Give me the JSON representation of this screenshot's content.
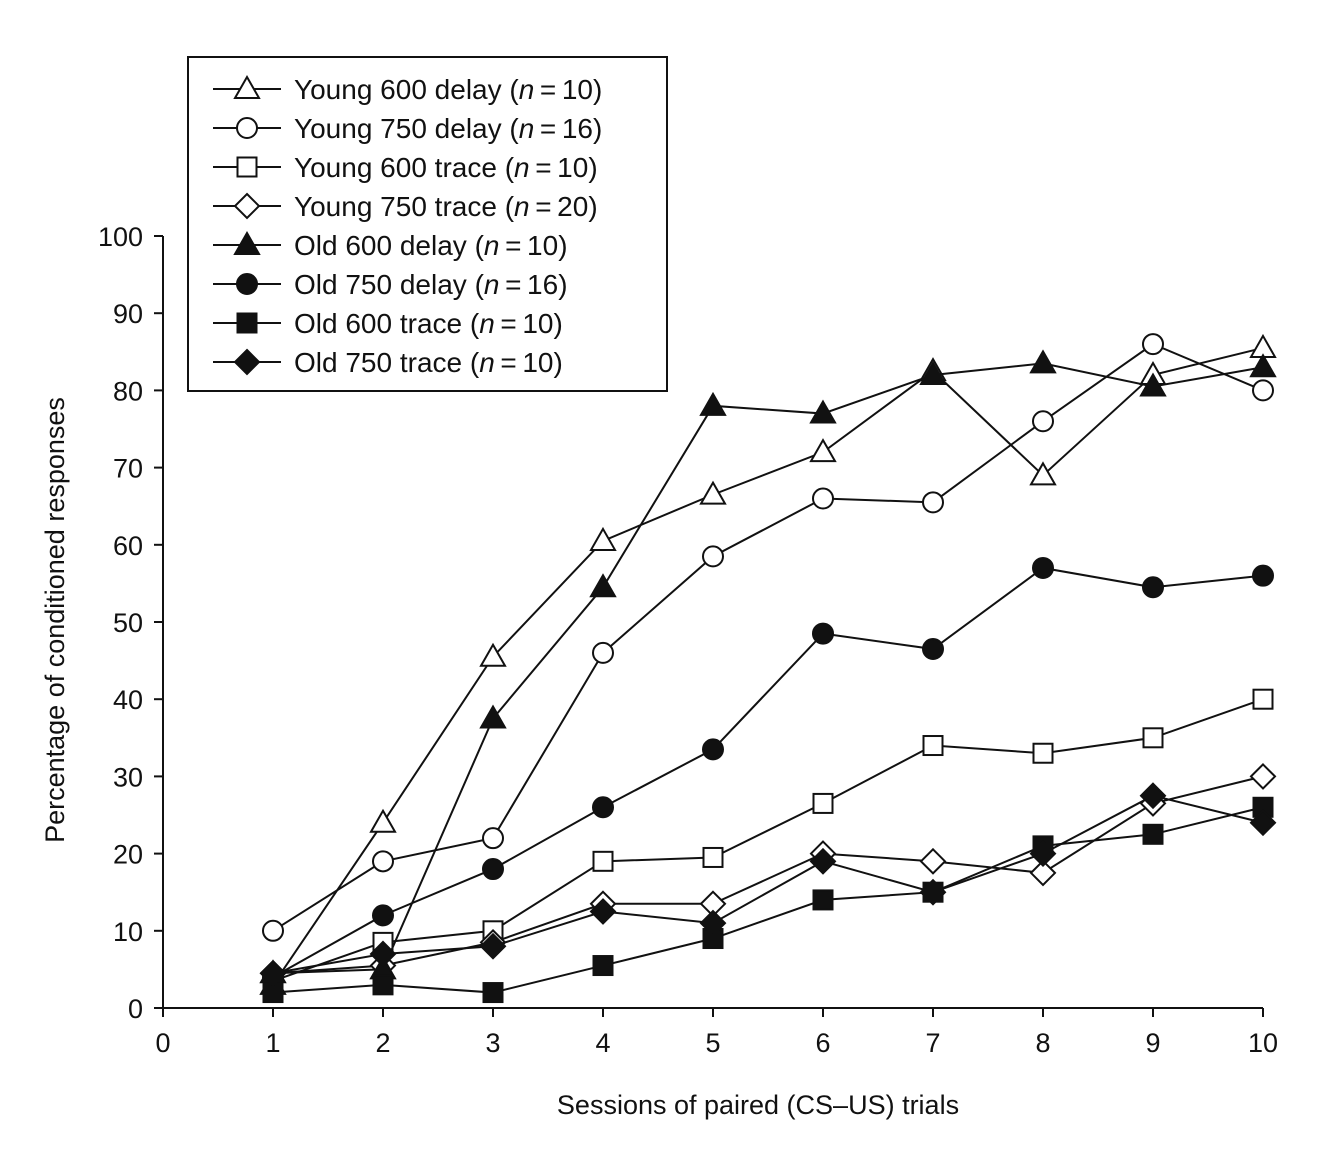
{
  "chart_data": {
    "type": "line",
    "title": "",
    "xlabel": "Sessions of paired (CS–US) trials",
    "ylabel": "Percentage of conditioned responses",
    "xlim": [
      0,
      10
    ],
    "ylim": [
      0,
      100
    ],
    "xticks": [
      0,
      1,
      2,
      3,
      4,
      5,
      6,
      7,
      8,
      9,
      10
    ],
    "yticks": [
      0,
      10,
      20,
      30,
      40,
      50,
      60,
      70,
      80,
      90,
      100
    ],
    "grid": false,
    "legend_position": "top-left",
    "x": [
      1,
      2,
      3,
      4,
      5,
      6,
      7,
      8,
      9,
      10
    ],
    "series": [
      {
        "name": "Young 600 delay",
        "n": "10",
        "marker": "triangle",
        "filled": false,
        "values": [
          3,
          24,
          45.5,
          60.5,
          66.5,
          72,
          82.5,
          69,
          82,
          85.5
        ]
      },
      {
        "name": "Young 750 delay",
        "n": "16",
        "marker": "circle",
        "filled": false,
        "values": [
          10,
          19,
          22,
          46,
          58.5,
          66,
          65.5,
          76,
          86,
          80
        ]
      },
      {
        "name": "Young 600 trace",
        "n": "10",
        "marker": "square",
        "filled": false,
        "values": [
          3.5,
          8.5,
          10,
          19,
          19.5,
          26.5,
          34,
          33,
          35,
          40
        ]
      },
      {
        "name": "Young 750 trace",
        "n": "20",
        "marker": "diamond",
        "filled": false,
        "values": [
          4.5,
          5.5,
          8.5,
          13.5,
          13.5,
          20,
          19,
          17.5,
          26.5,
          30
        ]
      },
      {
        "name": "Old 600 delay",
        "n": "10",
        "marker": "triangle",
        "filled": true,
        "values": [
          4.5,
          5,
          37.5,
          54.5,
          78,
          77,
          82,
          83.5,
          80.5,
          83
        ]
      },
      {
        "name": "Old 750 delay",
        "n": "16",
        "marker": "circle",
        "filled": true,
        "values": [
          4,
          12,
          18,
          26,
          33.5,
          48.5,
          46.5,
          57,
          54.5,
          56
        ]
      },
      {
        "name": "Old 600 trace",
        "n": "10",
        "marker": "square",
        "filled": true,
        "values": [
          2,
          3,
          2,
          5.5,
          9,
          14,
          15,
          21,
          22.5,
          26
        ]
      },
      {
        "name": "Old 750 trace",
        "n": "10",
        "marker": "diamond",
        "filled": true,
        "values": [
          4.5,
          7,
          8,
          12.5,
          11,
          19,
          15,
          20,
          27.5,
          24
        ]
      }
    ]
  }
}
